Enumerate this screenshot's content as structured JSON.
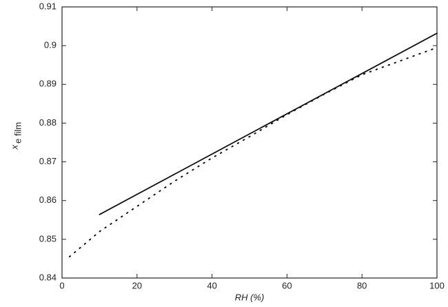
{
  "chart_data": {
    "type": "line",
    "xlabel": "RH (%)",
    "ylabel": "x",
    "ylabel_subscript": "e film",
    "xlim": [
      0,
      100
    ],
    "xticks": [
      0,
      20,
      40,
      60,
      80,
      100
    ],
    "ylim": [
      0.84,
      0.91
    ],
    "yticks": [
      0.84,
      0.85,
      0.86,
      0.87,
      0.88,
      0.89,
      0.9,
      0.91
    ],
    "series": [
      {
        "style": "solid",
        "color": "#111111",
        "x": [
          10,
          100
        ],
        "values": [
          0.8564,
          0.9032
        ]
      },
      {
        "style": "dotted",
        "color": "#111111",
        "x": [
          2,
          10,
          20,
          30,
          40,
          50,
          60,
          70,
          80,
          90,
          100
        ],
        "values": [
          0.8455,
          0.852,
          0.8585,
          0.865,
          0.871,
          0.8765,
          0.8822,
          0.8875,
          0.8925,
          0.896,
          0.8995
        ]
      }
    ]
  }
}
